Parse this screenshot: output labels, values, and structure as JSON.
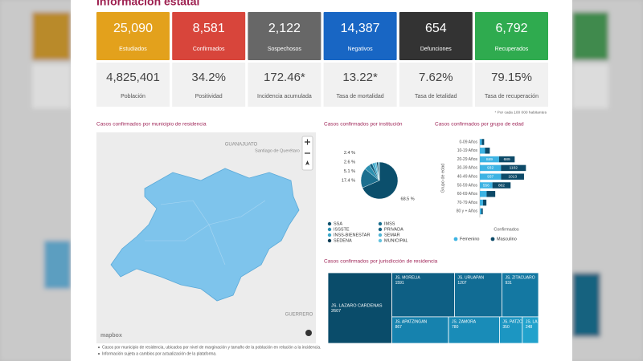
{
  "header": {
    "title": "Información estatal"
  },
  "cards": [
    {
      "value": "25,090",
      "label": "Estudiados",
      "color": "#e3a11c"
    },
    {
      "value": "8,581",
      "label": "Confirmados",
      "color": "#d8453b"
    },
    {
      "value": "2,122",
      "label": "Sospechosos",
      "color": "#676767"
    },
    {
      "value": "14,387",
      "label": "Negativos",
      "color": "#1866c4"
    },
    {
      "value": "654",
      "label": "Defunciones",
      "color": "#333333"
    },
    {
      "value": "6,792",
      "label": "Recuperados",
      "color": "#2fab4f"
    }
  ],
  "indicators": [
    {
      "value": "4,825,401",
      "label": "Población"
    },
    {
      "value": "34.2%",
      "label": "Positividad"
    },
    {
      "value": "172.46*",
      "label": "Incidencia acumulada"
    },
    {
      "value": "13.22*",
      "label": "Tasa de mortalidad"
    },
    {
      "value": "7.62%",
      "label": "Tasa de letalidad"
    },
    {
      "value": "79.15%",
      "label": "Tasa de recuperación"
    }
  ],
  "indicators_note": "* Por cada 100 000 habitantes",
  "map": {
    "title": "Casos confirmados por municipio de residencia",
    "places": [
      "GUANAJUATO",
      "Santiago de Querétaro",
      "GUERRERO"
    ],
    "attribution": "mapbox"
  },
  "chart_data": [
    {
      "type": "pie",
      "title": "Casos confirmados por institución",
      "categories": [
        "SSA",
        "IMSS",
        "ISSSTE",
        "PRIVADA",
        "INSS-BIENESTAR",
        "SEMAR",
        "SEDENA",
        "MUNICIPAL"
      ],
      "values": [
        68.5,
        17.4,
        5.1,
        2.6,
        2.4,
        1.6,
        1.4,
        1.0
      ],
      "value_labels": [
        "68.5 %",
        "17.4 %",
        "5.1 %",
        "2.6 %",
        "2.4 %",
        null,
        null,
        null
      ],
      "colors": [
        "#0b4f6c",
        "#1b6f8f",
        "#2a8fb0",
        "#136080",
        "#3aa7c9",
        "#52b6d6",
        "#0a3d55",
        "#64c4e0"
      ]
    },
    {
      "type": "bar",
      "orientation": "horizontal",
      "stacked": true,
      "title": "Casos confirmados por grupo de edad",
      "categories": [
        "0-09 Años",
        "10-19 Años",
        "20-29 Años",
        "30-39 Años",
        "40-49 Años",
        "50-59 Años",
        "60-69 Años",
        "70-79 Años",
        "80 y + Años"
      ],
      "series": [
        {
          "name": "Femenino",
          "color": "#3db3e3",
          "values": [
            90,
            230,
            849,
            932,
            937,
            556,
            300,
            140,
            70
          ]
        },
        {
          "name": "Masculino",
          "color": "#0d4a68",
          "values": [
            100,
            210,
            689,
            1102,
            1013,
            802,
            380,
            150,
            60
          ]
        }
      ],
      "xlabel": "Confirmados",
      "ylabel": "Grupo de edad",
      "xlim": [
        0,
        3300
      ]
    },
    {
      "type": "treemap",
      "title": "Casos confirmados por jurisdicción de residencia",
      "categories": [
        "JS. LAZARO CARDENAS",
        "JS. MORELIA",
        "JS. URUAPAN",
        "JS. ZITACUARO",
        "JS. APATZINGAN",
        "JS. ZAMORA",
        "JS. PATZCUARO",
        "JS. LA PIEDAD"
      ],
      "values": [
        2607,
        1591,
        1207,
        931,
        867,
        780,
        350,
        248
      ],
      "colors": [
        "#0a4c6a",
        "#0e5f84",
        "#116c94",
        "#1478a2",
        "#1682ae",
        "#198cb8",
        "#1c96c2",
        "#21a2cc"
      ]
    }
  ],
  "footnotes": [
    "Casos por municipio de residencia, ubicados por nivel de marginación y tamaño de la población en relación a la incidencia.",
    "Información sujeta a cambios por actualización de la plataforma."
  ]
}
